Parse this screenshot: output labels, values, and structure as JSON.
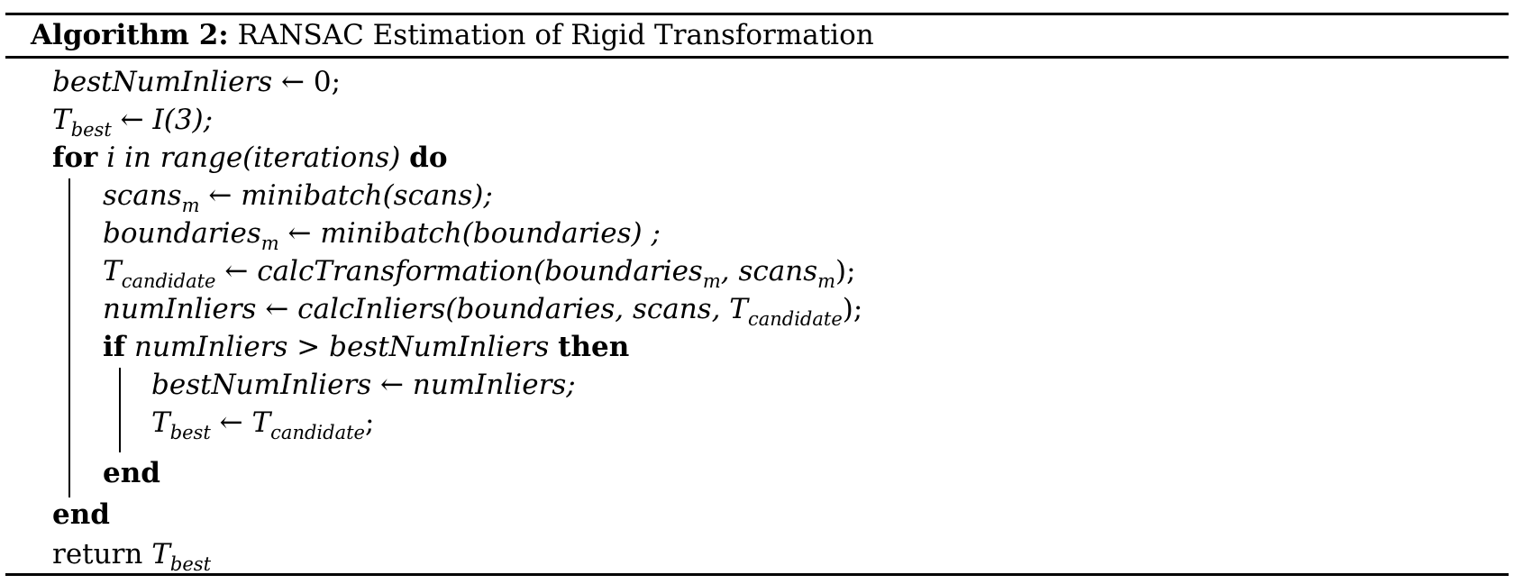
{
  "algorithm": {
    "label": "Algorithm 2:",
    "title": "RANSAC Estimation of Rigid Transformation"
  },
  "lines": {
    "l1": {
      "lhs": "bestNumInliers",
      "arrow": "←",
      "rhs": "0;"
    },
    "l2": {
      "lhs": "T",
      "lhs_sub": "best",
      "arrow": "←",
      "rhs": "I(3);"
    },
    "l3": {
      "kw1": "for",
      "cond": "i in range(iterations)",
      "kw2": "do"
    },
    "l4": {
      "lhs": "scans",
      "lhs_sub": "m",
      "arrow": "←",
      "rhs": "minibatch(scans);"
    },
    "l5": {
      "lhs": "boundaries",
      "lhs_sub": "m",
      "arrow": "←",
      "rhs": "minibatch(boundaries) ;"
    },
    "l6": {
      "lhs": "T",
      "lhs_sub": "candidate",
      "arrow": "←",
      "rhs_pre": "calcTransformation(boundaries",
      "rhs_sub1": "m",
      "rhs_mid": ", scans",
      "rhs_sub2": "m",
      "rhs_post": ");"
    },
    "l7": {
      "lhs": "numInliers",
      "arrow": "←",
      "rhs_pre": "calcInliers(boundaries, scans, T",
      "rhs_sub": "candidate",
      "rhs_post": ");"
    },
    "l8": {
      "kw1": "if",
      "cond": "numInliers > bestNumInliers",
      "kw2": "then"
    },
    "l9": {
      "lhs": "bestNumInliers",
      "arrow": "←",
      "rhs": "numInliers;"
    },
    "l10": {
      "lhs": "T",
      "lhs_sub": "best",
      "arrow": "←",
      "rhs": "T",
      "rhs_sub": "candidate",
      "rhs_post": ";"
    },
    "l11": {
      "kw": "end"
    },
    "l12": {
      "kw": "end"
    },
    "l13": {
      "text": "return",
      "var": "T",
      "var_sub": "best"
    }
  }
}
